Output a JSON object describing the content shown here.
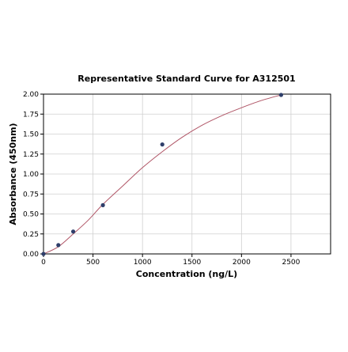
{
  "chart_data": {
    "type": "scatter",
    "title": "Representative Standard Curve for A312501",
    "xlabel": "Concentration (ng/L)",
    "ylabel": "Absorbance (450nm)",
    "xlim": [
      0,
      2900
    ],
    "ylim": [
      0,
      2.0
    ],
    "grid": true,
    "x_ticks": [
      0,
      500,
      1000,
      1500,
      2000,
      2500
    ],
    "y_ticks": [
      0.0,
      0.25,
      0.5,
      0.75,
      1.0,
      1.25,
      1.5,
      1.75,
      2.0
    ],
    "x_tick_labels": [
      "0",
      "500",
      "1000",
      "1500",
      "2000",
      "2500"
    ],
    "y_tick_labels": [
      "0.00",
      "0.25",
      "0.50",
      "0.75",
      "1.00",
      "1.25",
      "1.50",
      "1.75",
      "2.00"
    ],
    "points": [
      {
        "x": 0,
        "y": 0.0
      },
      {
        "x": 150,
        "y": 0.11
      },
      {
        "x": 300,
        "y": 0.28
      },
      {
        "x": 600,
        "y": 0.61
      },
      {
        "x": 1200,
        "y": 1.37
      },
      {
        "x": 2400,
        "y": 1.99
      }
    ],
    "curve": [
      {
        "x": 0,
        "y": 0.0
      },
      {
        "x": 150,
        "y": 0.09
      },
      {
        "x": 300,
        "y": 0.25
      },
      {
        "x": 450,
        "y": 0.42
      },
      {
        "x": 600,
        "y": 0.62
      },
      {
        "x": 800,
        "y": 0.85
      },
      {
        "x": 1000,
        "y": 1.08
      },
      {
        "x": 1200,
        "y": 1.28
      },
      {
        "x": 1400,
        "y": 1.46
      },
      {
        "x": 1600,
        "y": 1.61
      },
      {
        "x": 1800,
        "y": 1.73
      },
      {
        "x": 2000,
        "y": 1.83
      },
      {
        "x": 2200,
        "y": 1.92
      },
      {
        "x": 2400,
        "y": 1.99
      }
    ],
    "colors": {
      "point": "#2f3f6b",
      "curve": "#b05566",
      "grid": "#d0d0d0",
      "axis": "#000000"
    }
  }
}
